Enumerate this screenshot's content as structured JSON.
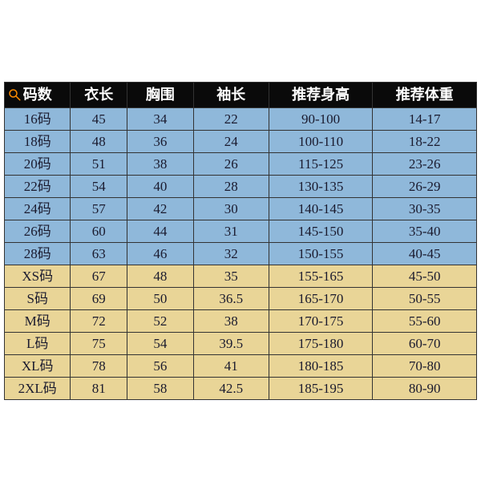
{
  "table": {
    "type": "table",
    "columns": [
      "码数",
      "衣长",
      "胸围",
      "袖长",
      "推荐身高",
      "推荐体重"
    ],
    "col_widths": [
      "14%",
      "12%",
      "14%",
      "16%",
      "22%",
      "22%"
    ],
    "header_bg": "#0a0a0a",
    "header_text_color": "#ffffff",
    "blue_row_color": "#8fb8da",
    "tan_row_color": "#e9d597",
    "border_color": "#333333",
    "font_size": 17,
    "header_font_size": 18,
    "search_icon_color": "#ff8c00",
    "rows": [
      {
        "group": "blue",
        "cells": [
          "16码",
          "45",
          "34",
          "22",
          "90-100",
          "14-17"
        ]
      },
      {
        "group": "blue",
        "cells": [
          "18码",
          "48",
          "36",
          "24",
          "100-110",
          "18-22"
        ]
      },
      {
        "group": "blue",
        "cells": [
          "20码",
          "51",
          "38",
          "26",
          "115-125",
          "23-26"
        ]
      },
      {
        "group": "blue",
        "cells": [
          "22码",
          "54",
          "40",
          "28",
          "130-135",
          "26-29"
        ]
      },
      {
        "group": "blue",
        "cells": [
          "24码",
          "57",
          "42",
          "30",
          "140-145",
          "30-35"
        ]
      },
      {
        "group": "blue",
        "cells": [
          "26码",
          "60",
          "44",
          "31",
          "145-150",
          "35-40"
        ]
      },
      {
        "group": "blue",
        "cells": [
          "28码",
          "63",
          "46",
          "32",
          "150-155",
          "40-45"
        ]
      },
      {
        "group": "tan",
        "cells": [
          "XS码",
          "67",
          "48",
          "35",
          "155-165",
          "45-50"
        ]
      },
      {
        "group": "tan",
        "cells": [
          "S码",
          "69",
          "50",
          "36.5",
          "165-170",
          "50-55"
        ]
      },
      {
        "group": "tan",
        "cells": [
          "M码",
          "72",
          "52",
          "38",
          "170-175",
          "55-60"
        ]
      },
      {
        "group": "tan",
        "cells": [
          "L码",
          "75",
          "54",
          "39.5",
          "175-180",
          "60-70"
        ]
      },
      {
        "group": "tan",
        "cells": [
          "XL码",
          "78",
          "56",
          "41",
          "180-185",
          "70-80"
        ]
      },
      {
        "group": "tan",
        "cells": [
          "2XL码",
          "81",
          "58",
          "42.5",
          "185-195",
          "80-90"
        ]
      }
    ]
  }
}
